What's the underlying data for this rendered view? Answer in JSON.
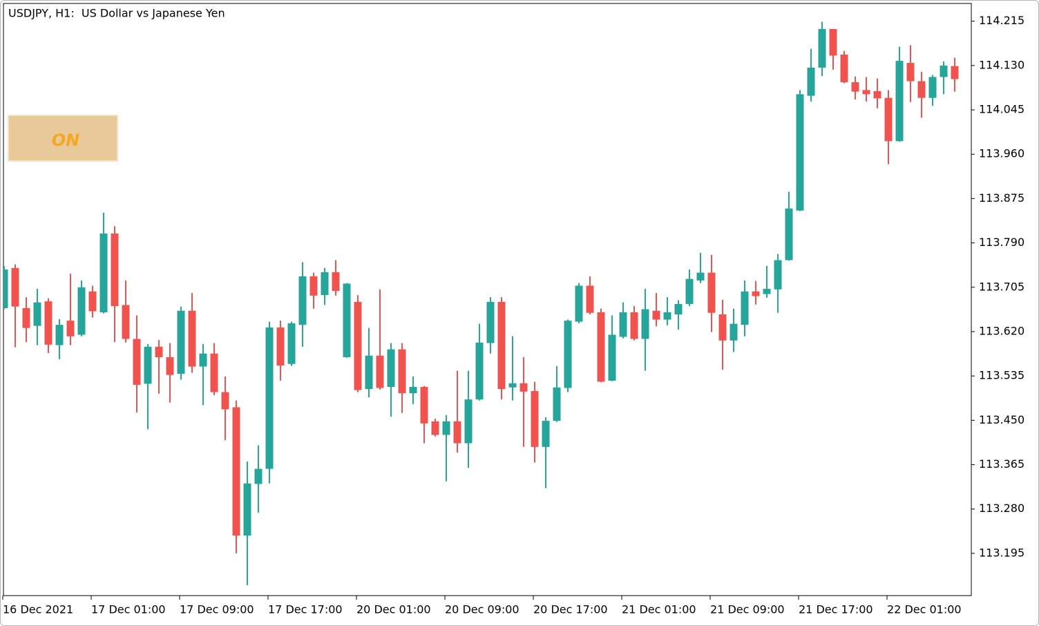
{
  "chart_data": {
    "type": "candlestick",
    "title": "USDJPY, H1:  US Dollar vs Japanese Yen",
    "up_color": "#26a69a",
    "down_color": "#ef5350",
    "categories": [
      "16 Dec 2021",
      null,
      null,
      null,
      null,
      null,
      null,
      null,
      "17 Dec 01:00",
      null,
      null,
      null,
      null,
      null,
      null,
      null,
      "17 Dec 09:00",
      null,
      null,
      null,
      null,
      null,
      null,
      null,
      "17 Dec 17:00",
      null,
      null,
      null,
      null,
      null,
      null,
      null,
      "20 Dec 01:00",
      null,
      null,
      null,
      null,
      null,
      null,
      null,
      "20 Dec 09:00",
      null,
      null,
      null,
      null,
      null,
      null,
      null,
      "20 Dec 17:00",
      null,
      null,
      null,
      null,
      null,
      null,
      null,
      "21 Dec 01:00",
      null,
      null,
      null,
      null,
      null,
      null,
      null,
      "21 Dec 09:00",
      null,
      null,
      null,
      null,
      null,
      null,
      null,
      "21 Dec 17:00",
      null,
      null,
      null,
      null,
      null,
      null,
      null,
      "22 Dec 01:00",
      null,
      null,
      null,
      null,
      null,
      null
    ],
    "open": [
      113.665,
      113.742,
      113.665,
      113.631,
      113.678,
      113.594,
      113.641,
      113.614,
      113.697,
      113.657,
      113.808,
      113.671,
      113.606,
      113.52,
      113.591,
      113.571,
      113.539,
      113.66,
      113.553,
      113.578,
      113.504,
      113.475,
      113.229,
      113.328,
      113.357,
      113.628,
      113.558,
      113.633,
      113.726,
      113.69,
      113.734,
      113.571,
      113.677,
      113.51,
      113.574,
      113.514,
      113.586,
      113.502,
      113.514,
      113.448,
      113.422,
      113.448,
      113.406,
      113.49,
      113.598,
      113.677,
      113.513,
      113.521,
      113.506,
      113.399,
      113.449,
      113.512,
      113.639,
      113.708,
      113.657,
      113.526,
      113.61,
      113.657,
      113.606,
      113.66,
      113.643,
      113.653,
      113.673,
      113.718,
      113.733,
      113.653,
      113.603,
      113.633,
      113.697,
      113.692,
      113.701,
      113.757,
      113.852,
      114.072,
      114.126,
      114.2,
      114.151,
      114.098,
      114.083,
      114.081,
      114.068,
      113.985,
      114.135,
      114.1,
      114.068,
      114.108,
      114.129
    ],
    "high": [
      113.746,
      113.749,
      113.686,
      113.702,
      113.684,
      113.644,
      113.731,
      113.718,
      113.708,
      113.848,
      113.822,
      113.718,
      113.651,
      113.596,
      113.604,
      113.598,
      113.668,
      113.694,
      113.596,
      113.598,
      113.534,
      113.488,
      113.371,
      113.402,
      113.639,
      113.641,
      113.639,
      113.753,
      113.733,
      113.742,
      113.757,
      113.713,
      113.69,
      113.627,
      113.701,
      113.598,
      113.598,
      113.534,
      113.516,
      113.453,
      113.46,
      113.545,
      113.545,
      113.635,
      113.686,
      113.686,
      113.611,
      113.571,
      113.524,
      113.456,
      113.554,
      113.643,
      113.713,
      113.726,
      113.664,
      113.651,
      113.676,
      113.669,
      113.702,
      113.694,
      113.686,
      113.68,
      113.739,
      113.771,
      113.767,
      113.681,
      113.664,
      113.718,
      113.717,
      113.746,
      113.769,
      113.888,
      114.083,
      114.162,
      114.214,
      114.2,
      114.158,
      114.109,
      114.108,
      114.105,
      114.083,
      114.166,
      114.169,
      114.118,
      114.112,
      114.138,
      114.145
    ],
    "low": [
      113.663,
      113.59,
      113.6,
      113.594,
      113.579,
      113.567,
      113.594,
      113.611,
      113.647,
      113.655,
      113.6,
      113.599,
      113.465,
      113.433,
      113.501,
      113.484,
      113.528,
      113.541,
      113.479,
      113.498,
      113.412,
      113.195,
      113.134,
      113.273,
      113.329,
      113.526,
      113.554,
      113.591,
      113.664,
      113.671,
      113.689,
      113.57,
      113.504,
      113.494,
      113.509,
      113.457,
      113.464,
      113.481,
      113.406,
      113.419,
      113.333,
      113.388,
      113.359,
      113.488,
      113.578,
      113.49,
      113.488,
      113.399,
      113.369,
      113.32,
      113.447,
      113.504,
      113.636,
      113.653,
      113.523,
      113.525,
      113.607,
      113.603,
      113.545,
      113.63,
      113.632,
      113.624,
      113.669,
      113.713,
      113.619,
      113.547,
      113.581,
      113.611,
      113.672,
      113.685,
      113.656,
      113.756,
      113.851,
      114.061,
      114.11,
      114.122,
      114.096,
      114.065,
      114.061,
      114.048,
      113.941,
      113.984,
      114.06,
      114.03,
      114.053,
      114.075,
      114.08
    ],
    "close": [
      113.739,
      113.668,
      113.627,
      113.676,
      113.595,
      113.633,
      113.611,
      113.705,
      113.659,
      113.808,
      113.669,
      113.606,
      113.518,
      113.591,
      113.571,
      113.537,
      113.66,
      113.553,
      113.578,
      113.504,
      113.471,
      113.229,
      113.329,
      113.357,
      113.628,
      113.555,
      113.636,
      113.726,
      113.689,
      113.734,
      113.698,
      113.712,
      113.508,
      113.574,
      113.512,
      113.586,
      113.502,
      113.514,
      113.444,
      113.422,
      113.448,
      113.406,
      113.49,
      113.599,
      113.677,
      113.51,
      113.521,
      113.505,
      113.399,
      113.449,
      113.513,
      113.641,
      113.708,
      113.656,
      113.524,
      113.614,
      113.657,
      113.606,
      113.663,
      113.643,
      113.657,
      113.673,
      113.721,
      113.733,
      113.656,
      113.603,
      113.635,
      113.697,
      113.688,
      113.702,
      113.757,
      113.856,
      114.075,
      114.126,
      114.2,
      114.149,
      114.098,
      114.08,
      114.075,
      114.067,
      113.985,
      114.139,
      114.1,
      114.068,
      114.108,
      114.13,
      114.104
    ],
    "ylim": [
      113.114,
      114.249
    ],
    "yticks": [
      114.215,
      {
        "value": 114.13,
        "label": "114.130"
      },
      114.045,
      {
        "value": 113.96,
        "label": "113.960"
      },
      113.875,
      {
        "value": 113.79,
        "label": "113.790"
      },
      113.705,
      {
        "value": 113.62,
        "label": "113.620"
      },
      113.535,
      {
        "value": 113.45,
        "label": "113.450"
      },
      113.365,
      {
        "value": 113.28,
        "label": "113.280"
      },
      113.195
    ],
    "grid": false
  },
  "button": {
    "label": "ON"
  }
}
